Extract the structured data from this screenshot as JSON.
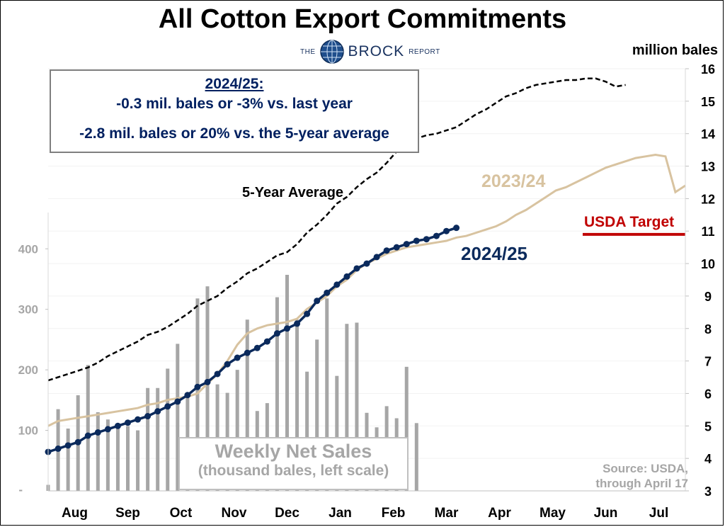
{
  "title": "All Cotton Export Commitments",
  "logo": {
    "pre": "THE",
    "name": "BROCK",
    "post": "REPORT"
  },
  "right_axis_title": "million bales",
  "info_box": {
    "heading": "2024/25:",
    "line1": "-0.3 mil. bales or -3% vs. last year",
    "line2": "-2.8 mil. bales or 20% vs. the 5-year average"
  },
  "sales_box": {
    "title": "Weekly Net Sales",
    "subtitle": "(thousand bales, left scale)"
  },
  "source": {
    "line1": "Source: USDA,",
    "line2": "through April 17"
  },
  "colors": {
    "five_year": "#000000",
    "prior_year": "#d8c3a0",
    "current": "#0b2a5c",
    "usda": "#c00000",
    "bars": "#a6a6a6",
    "left_axis": "#a6a6a6"
  },
  "chart_data": {
    "type": "line",
    "x_axis": {
      "ticks": [
        "Aug",
        "Sep",
        "Oct",
        "Nov",
        "Dec",
        "Jan",
        "Feb",
        "Mar",
        "Apr",
        "May",
        "Jun",
        "Jul"
      ]
    },
    "right_axis": {
      "min": 3,
      "max": 16,
      "ticks": [
        3,
        4,
        5,
        6,
        7,
        8,
        9,
        10,
        11,
        12,
        13,
        14,
        15,
        16
      ],
      "label": "million bales"
    },
    "left_axis": {
      "min": 0,
      "max": 460,
      "ticks": [
        100,
        200,
        300,
        400
      ],
      "bottom_tick": "-"
    },
    "series": [
      {
        "name": "5-Year Average",
        "axis": "right",
        "style": "dashed",
        "values": [
          6.4,
          6.5,
          6.6,
          6.7,
          6.8,
          6.95,
          7.15,
          7.3,
          7.45,
          7.6,
          7.8,
          7.9,
          8.05,
          8.25,
          8.45,
          8.7,
          8.85,
          9.0,
          9.25,
          9.45,
          9.7,
          9.85,
          10.05,
          10.25,
          10.35,
          10.6,
          10.95,
          11.2,
          11.5,
          11.85,
          12.05,
          12.35,
          12.6,
          12.8,
          13.1,
          13.45,
          13.7,
          13.85,
          13.95,
          14.0,
          14.1,
          14.2,
          14.4,
          14.6,
          14.75,
          14.95,
          15.15,
          15.25,
          15.4,
          15.5,
          15.55,
          15.6,
          15.65,
          15.65,
          15.7,
          15.7,
          15.6,
          15.45,
          15.5
        ]
      },
      {
        "name": "2023/24",
        "axis": "right",
        "style": "solid",
        "values": [
          5.0,
          5.15,
          5.2,
          5.25,
          5.3,
          5.35,
          5.4,
          5.45,
          5.5,
          5.55,
          5.65,
          5.7,
          5.8,
          5.85,
          5.9,
          6.0,
          6.3,
          6.6,
          7.0,
          7.5,
          7.85,
          8.0,
          8.1,
          8.15,
          8.2,
          8.3,
          8.6,
          8.8,
          9.0,
          9.3,
          9.5,
          9.8,
          10.0,
          10.15,
          10.3,
          10.4,
          10.5,
          10.55,
          10.6,
          10.65,
          10.7,
          10.8,
          10.85,
          10.95,
          11.05,
          11.15,
          11.3,
          11.5,
          11.65,
          11.85,
          12.05,
          12.25,
          12.35,
          12.5,
          12.65,
          12.8,
          12.95,
          13.05,
          13.15,
          13.25,
          13.3,
          13.35,
          13.3,
          12.2,
          12.4
        ]
      },
      {
        "name": "2024/25",
        "axis": "right",
        "style": "solid-markers",
        "values": [
          4.2,
          4.3,
          4.4,
          4.5,
          4.7,
          4.8,
          4.9,
          5.0,
          5.1,
          5.2,
          5.3,
          5.45,
          5.6,
          5.75,
          5.95,
          6.2,
          6.35,
          6.6,
          6.9,
          7.1,
          7.25,
          7.4,
          7.6,
          7.85,
          8.0,
          8.15,
          8.45,
          8.85,
          9.1,
          9.35,
          9.6,
          9.85,
          10.0,
          10.2,
          10.4,
          10.5,
          10.6,
          10.7,
          10.75,
          10.85,
          11.0,
          11.1
        ]
      },
      {
        "name": "Weekly Net Sales",
        "axis": "left",
        "type": "bar",
        "values": [
          10,
          135,
          103,
          158,
          208,
          130,
          118,
          105,
          107,
          100,
          170,
          170,
          202,
          243,
          160,
          318,
          338,
          176,
          162,
          200,
          283,
          132,
          145,
          320,
          357,
          283,
          197,
          250,
          318,
          190,
          276,
          278,
          129,
          105,
          140,
          120,
          205,
          112
        ]
      },
      {
        "name": "USDA Target",
        "axis": "right",
        "type": "target",
        "value": 10.9
      }
    ]
  }
}
